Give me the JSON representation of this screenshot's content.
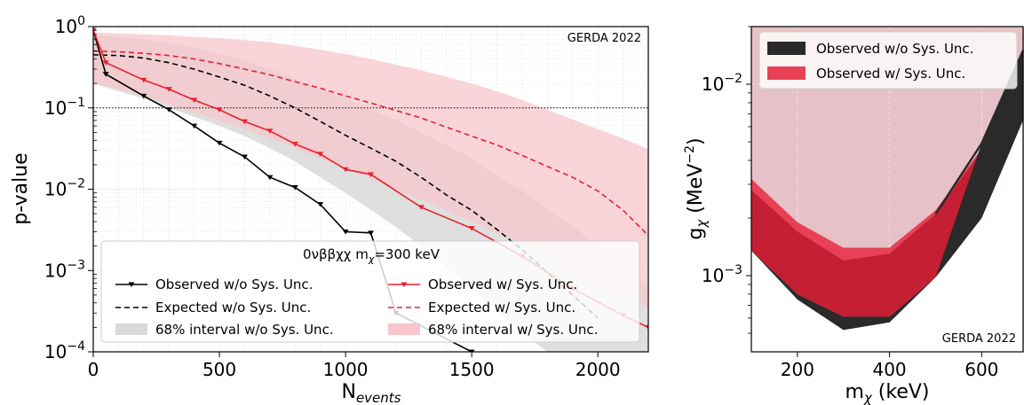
{
  "chart_data": [
    {
      "type": "line",
      "y_scale": "log",
      "xlim": [
        0,
        2200
      ],
      "ylim": [
        0.0001,
        1
      ],
      "xticks": [
        0,
        500,
        1000,
        1500,
        2000
      ],
      "yticks": [
        {
          "value": 1,
          "base": "10",
          "exp": "0"
        },
        {
          "value": 0.1,
          "base": "10",
          "exp": "−1"
        },
        {
          "value": 0.01,
          "base": "10",
          "exp": "−2"
        },
        {
          "value": 0.001,
          "base": "10",
          "exp": "−3"
        },
        {
          "value": 0.0001,
          "base": "10",
          "exp": "−4"
        }
      ],
      "xlabel": {
        "base": "N",
        "sub": "events"
      },
      "ylabel": "p-value",
      "grid": true,
      "reference_line": {
        "y": 0.1,
        "style": "dotted"
      },
      "tag": "GERDA 2022",
      "legend_title": "0νββχχ m",
      "legend_title_sub": "χ",
      "legend_title_tail": "=300 keV",
      "legend_placement": "lower-right",
      "series": [
        {
          "name": "Observed w/o Sys. Unc.",
          "kind": "line-marker",
          "color": "#000000",
          "x": [
            0,
            50,
            200,
            300,
            400,
            500,
            600,
            700,
            800,
            900,
            1000,
            1100,
            1200,
            1500
          ],
          "y": [
            0.9,
            0.26,
            0.14,
            0.095,
            0.06,
            0.037,
            0.025,
            0.014,
            0.0105,
            0.0065,
            0.003,
            0.0029,
            0.0003,
            0.0001
          ]
        },
        {
          "name": "Expected w/o Sys. Unc.",
          "kind": "dashed",
          "color": "#000000",
          "x": [
            0,
            100,
            200,
            300,
            400,
            500,
            600,
            700,
            800,
            900,
            1000,
            1100,
            1200,
            1300,
            1400,
            1500,
            1600,
            1700,
            1800,
            1900,
            2000
          ],
          "y": [
            0.45,
            0.44,
            0.41,
            0.36,
            0.3,
            0.24,
            0.19,
            0.14,
            0.1,
            0.068,
            0.046,
            0.032,
            0.022,
            0.014,
            0.0085,
            0.0055,
            0.0032,
            0.0018,
            0.00095,
            0.0005,
            0.00026
          ]
        },
        {
          "name": "68% interval w/o Sys. Unc.",
          "kind": "band",
          "color": "#d9d9d9",
          "x": [
            0,
            100,
            200,
            300,
            400,
            500,
            600,
            700,
            800,
            900,
            1000,
            1100,
            1200,
            1300,
            1400,
            1500,
            1600,
            1700,
            1800,
            1900,
            2000,
            2100,
            2200
          ],
          "upper": [
            0.8,
            0.75,
            0.7,
            0.63,
            0.55,
            0.46,
            0.38,
            0.3,
            0.23,
            0.17,
            0.13,
            0.095,
            0.07,
            0.05,
            0.035,
            0.024,
            0.015,
            0.0095,
            0.0058,
            0.0035,
            0.002,
            0.0011,
            0.0006
          ],
          "lower": [
            0.2,
            0.16,
            0.13,
            0.1,
            0.078,
            0.06,
            0.045,
            0.032,
            0.022,
            0.014,
            0.009,
            0.0056,
            0.0034,
            0.002,
            0.0011,
            0.0006,
            0.00032,
            0.00017,
            0.0001,
            0.0001,
            0.0001,
            0.0001,
            0.0001
          ]
        },
        {
          "name": "Observed w/ Sys. Unc.",
          "kind": "line-marker",
          "color": "#e8202e",
          "x": [
            0,
            50,
            200,
            300,
            400,
            500,
            600,
            700,
            800,
            900,
            1000,
            1100,
            1300,
            1500,
            1700,
            1900,
            2100,
            2200
          ],
          "y": [
            0.9,
            0.36,
            0.22,
            0.17,
            0.125,
            0.095,
            0.068,
            0.052,
            0.036,
            0.027,
            0.0175,
            0.0152,
            0.006,
            0.0033,
            0.0015,
            0.0006,
            0.00028,
            0.0002
          ]
        },
        {
          "name": "Expected w/ Sys. Unc.",
          "kind": "dashed",
          "color": "#e8202e",
          "x": [
            0,
            100,
            200,
            300,
            400,
            500,
            600,
            700,
            800,
            900,
            1000,
            1100,
            1200,
            1300,
            1400,
            1500,
            1600,
            1700,
            1800,
            1900,
            2000,
            2100,
            2200
          ],
          "y": [
            0.5,
            0.49,
            0.47,
            0.44,
            0.4,
            0.35,
            0.3,
            0.255,
            0.21,
            0.175,
            0.14,
            0.115,
            0.093,
            0.075,
            0.058,
            0.045,
            0.035,
            0.026,
            0.019,
            0.014,
            0.0095,
            0.0055,
            0.0027
          ]
        },
        {
          "name": "68% interval w/ Sys. Unc.",
          "kind": "band",
          "color": "#f7c5cb",
          "x": [
            0,
            100,
            200,
            300,
            400,
            500,
            600,
            700,
            800,
            900,
            1000,
            1100,
            1200,
            1300,
            1400,
            1500,
            1600,
            1700,
            1800,
            1900,
            2000,
            2100,
            2200
          ],
          "upper": [
            0.85,
            0.82,
            0.8,
            0.78,
            0.75,
            0.72,
            0.68,
            0.64,
            0.58,
            0.52,
            0.46,
            0.4,
            0.34,
            0.29,
            0.24,
            0.2,
            0.16,
            0.125,
            0.095,
            0.072,
            0.055,
            0.042,
            0.031
          ],
          "lower": [
            0.2,
            0.17,
            0.14,
            0.11,
            0.088,
            0.07,
            0.055,
            0.042,
            0.032,
            0.024,
            0.018,
            0.0135,
            0.01,
            0.0074,
            0.0054,
            0.004,
            0.0029,
            0.0021,
            0.0015,
            0.001,
            0.0007,
            0.0005,
            0.00035
          ]
        }
      ]
    },
    {
      "type": "area",
      "y_scale": "log",
      "xlim": [
        100,
        690
      ],
      "ylim": [
        0.0004,
        0.02
      ],
      "xticks": [
        200,
        400,
        600
      ],
      "yticks": [
        {
          "value": 0.01,
          "base": "10",
          "exp": "−2"
        },
        {
          "value": 0.001,
          "base": "10",
          "exp": "−3"
        }
      ],
      "xlabel": {
        "base": "m",
        "sub": "χ",
        "tail": " (keV)"
      },
      "ylabel": {
        "base": "g",
        "sub": "χ",
        "tail": " (MeV",
        "sup": "−2",
        "close": ")"
      },
      "grid": true,
      "tag": "GERDA 2022",
      "legend_placement": "top-left",
      "background_shade": "#e6c1c7",
      "series": [
        {
          "name": "Observed w/o Sys. Unc.",
          "kind": "area",
          "color": "#2a2a2a",
          "x": [
            100,
            200,
            300,
            400,
            500,
            600,
            690
          ],
          "y": [
            0.00135,
            0.00075,
            0.00052,
            0.00057,
            0.00098,
            0.0049,
            0.015
          ]
        },
        {
          "name": "Observed w/ Sys. Unc.",
          "kind": "area",
          "color": "#e84155",
          "x": [
            100,
            200,
            300,
            400,
            500,
            600,
            690
          ],
          "y": [
            0.0032,
            0.0019,
            0.0014,
            0.0014,
            0.0022,
            0.0046,
            0.0145
          ]
        },
        {
          "name": "overlap",
          "kind": "area-lower",
          "color": "#c41f33",
          "x": [
            100,
            200,
            300,
            400,
            500,
            600,
            690
          ],
          "y": [
            0.00135,
            0.0008,
            0.00061,
            0.00061,
            0.00098,
            0.002,
            0.0065
          ]
        },
        {
          "name": "overlap-top",
          "kind": "area-upper",
          "color": "#c41f33",
          "x": [
            100,
            200,
            300,
            400,
            500,
            600,
            690
          ],
          "y": [
            0.0028,
            0.0017,
            0.0012,
            0.0013,
            0.0021,
            0.0045,
            0.014
          ]
        }
      ]
    }
  ]
}
